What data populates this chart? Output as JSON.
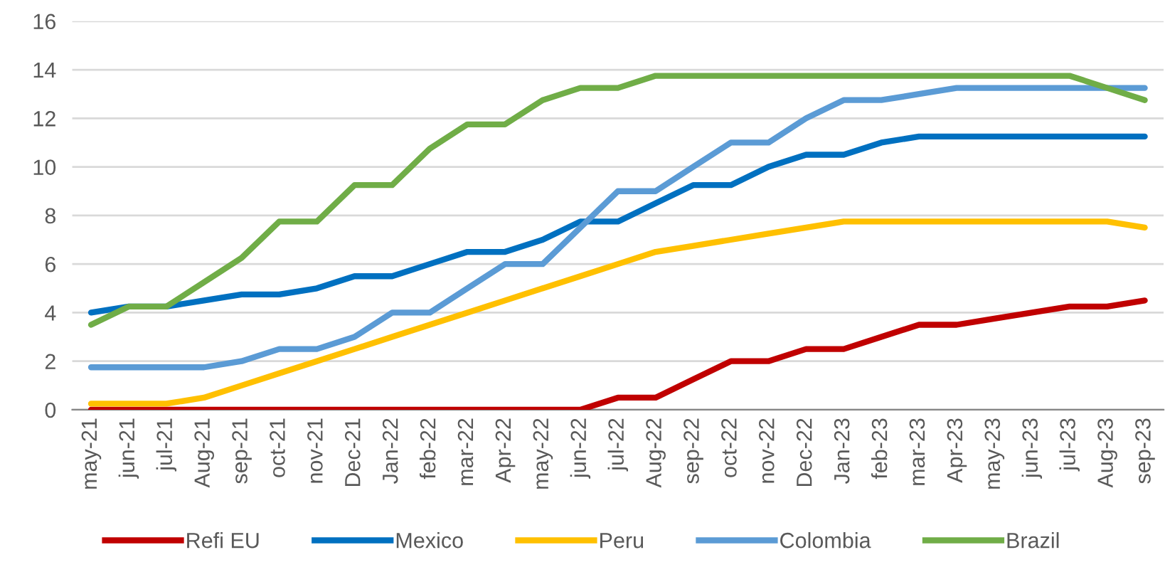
{
  "chart_data": {
    "type": "line",
    "categories": [
      "may-21",
      "jun-21",
      "jul-21",
      "Aug-21",
      "sep-21",
      "oct-21",
      "nov-21",
      "Dec-21",
      "Jan-22",
      "feb-22",
      "mar-22",
      "Apr-22",
      "may-22",
      "jun-22",
      "jul-22",
      "Aug-22",
      "sep-22",
      "oct-22",
      "nov-22",
      "Dec-22",
      "Jan-23",
      "feb-23",
      "mar-23",
      "Apr-23",
      "may-23",
      "jun-23",
      "jul-23",
      "Aug-23",
      "sep-23"
    ],
    "series": [
      {
        "name": "Refi EU",
        "color": "#c00000",
        "values": [
          0,
          0,
          0,
          0,
          0,
          0,
          0,
          0,
          0,
          0,
          0,
          0,
          0,
          0,
          0.5,
          0.5,
          1.25,
          2.0,
          2.0,
          2.5,
          2.5,
          3.0,
          3.5,
          3.5,
          3.75,
          4.0,
          4.25,
          4.25,
          4.5
        ]
      },
      {
        "name": "Mexico",
        "color": "#0070c0",
        "values": [
          4.0,
          4.25,
          4.25,
          4.5,
          4.75,
          4.75,
          5.0,
          5.5,
          5.5,
          6.0,
          6.5,
          6.5,
          7.0,
          7.75,
          7.75,
          8.5,
          9.25,
          9.25,
          10.0,
          10.5,
          10.5,
          11.0,
          11.25,
          11.25,
          11.25,
          11.25,
          11.25,
          11.25,
          11.25
        ]
      },
      {
        "name": "Peru",
        "color": "#ffc000",
        "values": [
          0.25,
          0.25,
          0.25,
          0.5,
          1.0,
          1.5,
          2.0,
          2.5,
          3.0,
          3.5,
          4.0,
          4.5,
          5.0,
          5.5,
          6.0,
          6.5,
          6.75,
          7.0,
          7.25,
          7.5,
          7.75,
          7.75,
          7.75,
          7.75,
          7.75,
          7.75,
          7.75,
          7.75,
          7.5
        ]
      },
      {
        "name": "Colombia",
        "color": "#5b9bd5",
        "values": [
          1.75,
          1.75,
          1.75,
          1.75,
          2.0,
          2.5,
          2.5,
          3.0,
          4.0,
          4.0,
          5.0,
          6.0,
          6.0,
          7.5,
          9.0,
          9.0,
          10.0,
          11.0,
          11.0,
          12.0,
          12.75,
          12.75,
          13.0,
          13.25,
          13.25,
          13.25,
          13.25,
          13.25,
          13.25
        ]
      },
      {
        "name": "Brazil",
        "color": "#70ad47",
        "values": [
          3.5,
          4.25,
          4.25,
          5.25,
          6.25,
          7.75,
          7.75,
          9.25,
          9.25,
          10.75,
          11.75,
          11.75,
          12.75,
          13.25,
          13.25,
          13.75,
          13.75,
          13.75,
          13.75,
          13.75,
          13.75,
          13.75,
          13.75,
          13.75,
          13.75,
          13.75,
          13.75,
          13.25,
          12.75
        ]
      }
    ],
    "ylim": [
      0,
      16
    ],
    "yticks": [
      0,
      2,
      4,
      6,
      8,
      10,
      12,
      14,
      16
    ],
    "grid": "y",
    "legend": "bottom",
    "marker": "none",
    "line_style": "solid"
  }
}
